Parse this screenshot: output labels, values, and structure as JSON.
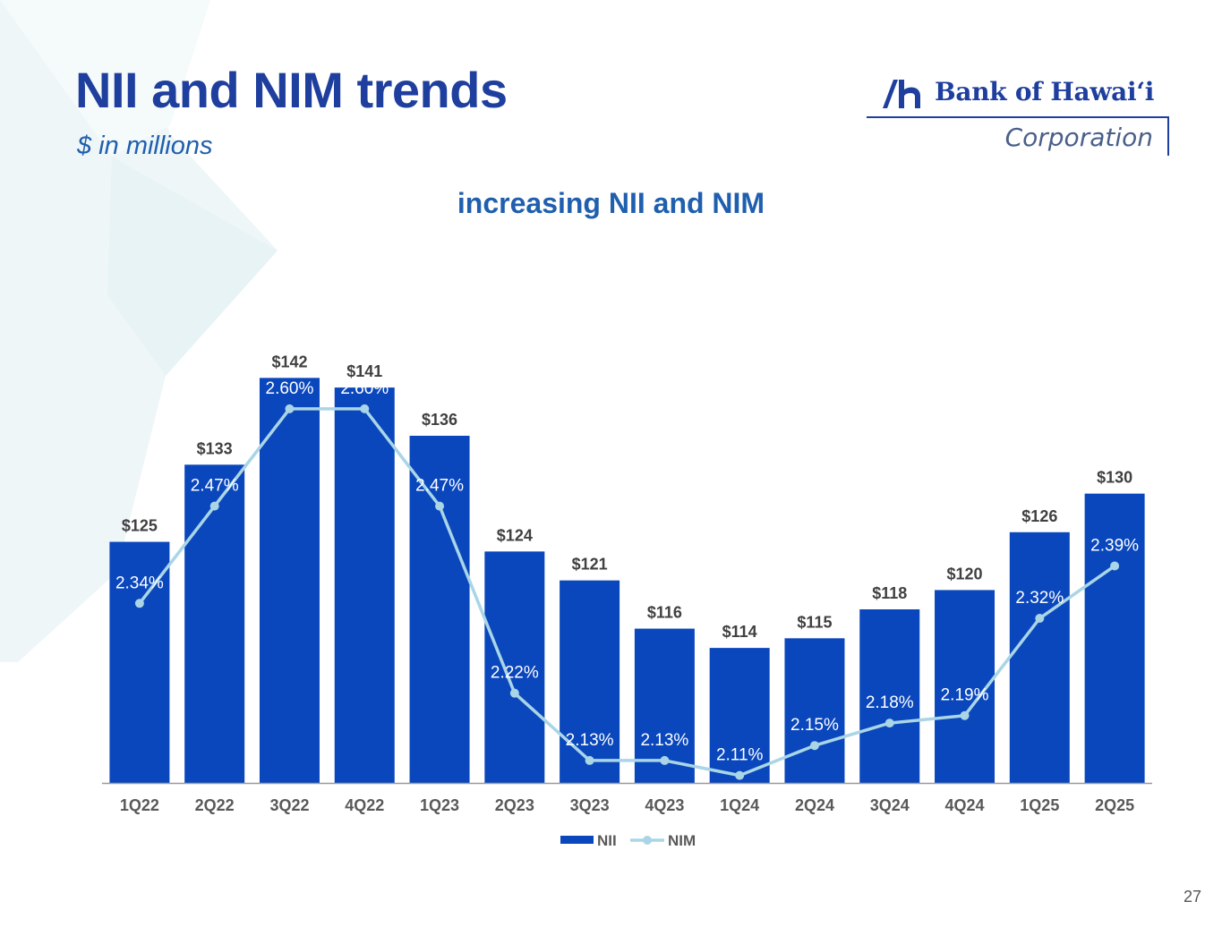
{
  "page": {
    "title": "NII and NIM trends",
    "subtitle": "$ in millions",
    "page_number": "27"
  },
  "logo": {
    "name": "Bank of Hawaiʻi",
    "corporation": "Corporation"
  },
  "colors": {
    "title": "#1f3f9e",
    "accent": "#1f5fae",
    "bar": "#0a47bd",
    "line": "#a9d5e6",
    "background_star": "#eef6f8"
  },
  "chart_data": {
    "type": "bar",
    "title": "increasing NII and NIM",
    "xlabel": "",
    "ylabel": "",
    "categories": [
      "1Q22",
      "2Q22",
      "3Q22",
      "4Q22",
      "1Q23",
      "2Q23",
      "3Q23",
      "4Q23",
      "1Q24",
      "2Q24",
      "3Q24",
      "4Q24",
      "1Q25",
      "2Q25"
    ],
    "series": [
      {
        "name": "NII",
        "type": "bar",
        "values": [
          125,
          133,
          142,
          141,
          136,
          124,
          121,
          116,
          114,
          115,
          118,
          120,
          126,
          130
        ],
        "labels": [
          "$125",
          "$133",
          "$142",
          "$141",
          "$136",
          "$124",
          "$121",
          "$116",
          "$114",
          "$115",
          "$118",
          "$120",
          "$126",
          "$130"
        ]
      },
      {
        "name": "NIM",
        "type": "line",
        "values": [
          2.34,
          2.47,
          2.6,
          2.6,
          2.47,
          2.22,
          2.13,
          2.13,
          2.11,
          2.15,
          2.18,
          2.19,
          2.32,
          2.39
        ],
        "labels": [
          "2.34%",
          "2.47%",
          "2.60%",
          "2.60%",
          "2.47%",
          "2.22%",
          "2.13%",
          "2.13%",
          "2.11%",
          "2.15%",
          "2.18%",
          "2.19%",
          "2.32%",
          "2.39%"
        ]
      }
    ],
    "nii_axis_range": [
      100,
      145
    ],
    "nim_axis_range": [
      2.1,
      2.68
    ],
    "grid": false,
    "legend": {
      "position": "bottom",
      "entries": [
        "NII",
        "NIM"
      ]
    }
  }
}
